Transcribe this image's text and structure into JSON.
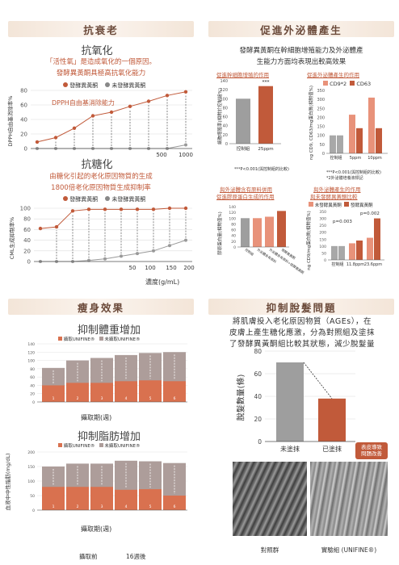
{
  "sections": {
    "antiaging": "抗衰老",
    "secretion": "促進外泌體產生",
    "slimming": "瘦身效果",
    "hairloss": "抑制脫髮問題"
  },
  "antiox": {
    "title": "抗氧化",
    "line1": "「活性氧」是造成氧化的一個原因。",
    "line2": "發酵異黃酮具極高抗氧化能力",
    "legend_a": "發酵異黃酮",
    "legend_b": "未發酵異黃酮",
    "inner_label": "DPPH自由基消除能力",
    "ylabel": "DPPH自由基消除率%"
  },
  "antigly": {
    "title": "抗糖化",
    "line1": "由糖化引起的老化原因物質的生成",
    "line2": "1800倍老化原因物質生成抑制率",
    "legend_a": "發酵異黃酮",
    "legend_b": "未發酵異黃酮",
    "ylabel": "CML生成抑制率%",
    "xlabel": "濃度(g/mL)"
  },
  "secretion": {
    "line1": "發酵異黃酮在幹細胞增殖能力及外泌體產",
    "line2": "生能力方面均表現出較高效果",
    "sub1": "促進幹細胞增殖的作用",
    "sub2": "促進外泌體產生的作用",
    "sub3": "與外泌體含有原料併用 促進膠原蛋白生成的作用",
    "sub3a": "與外泌體含有原料併用",
    "sub3b": "促進膠原蛋白生成的作用",
    "sub4a": "與外泌體產生的作用",
    "sub4b": "與未發酵異黃酮比較",
    "note1": "***P<0.001(與控制組的比較)",
    "note2": "***P<0.001(與控制組的比較)",
    "note2b": "*2外泌體培養液標記",
    "p_value": "p=0.003",
    "p_value2": "p=0.002",
    "legend_cd9": "CD9*2",
    "legend_cd63": "CD63",
    "legend_a": "未發酵異黃酮",
    "legend_b": "發酵異黃酮"
  },
  "chart_cells": {
    "type": "bar",
    "ylabel": "細胞增殖率(相對於控制組%)",
    "categories": [
      "控制組",
      "25ppm"
    ],
    "values": [
      100,
      128
    ],
    "ylim": [
      0,
      140
    ],
    "sig": "***"
  },
  "chart_exo": {
    "type": "bar",
    "ylabel": "ng CD9, CD63/mg蛋白質(相對值%)",
    "categories": [
      "控制組",
      "5ppm",
      "10ppm"
    ],
    "series": [
      {
        "name": "CD9*2",
        "values": [
          100,
          215,
          310
        ]
      },
      {
        "name": "CD63",
        "values": [
          100,
          140,
          140
        ]
      }
    ],
    "ylim": [
      0,
      350
    ]
  },
  "chart_col": {
    "type": "bar",
    "ylabel": "膠原蛋白量(相對值%)",
    "categories": [
      "控制組",
      "外泌體含有原料",
      "外泌體含有原料+發酵異黃酮",
      "發酵異黃酮"
    ],
    "values": [
      100,
      100,
      105,
      125
    ],
    "ylim": [
      0,
      140
    ]
  },
  "chart_exo2": {
    "type": "bar",
    "ylabel": "ng CD9/mg蛋白質(相對值%)",
    "categories": [
      "控制組",
      "11.8ppm",
      "23.6ppm"
    ],
    "series": [
      {
        "name": "未發酵異黃酮",
        "values": [
          100,
          120,
          160
        ]
      },
      {
        "name": "發酵異黃酮",
        "values": [
          100,
          140,
          300
        ]
      }
    ],
    "ylim": [
      0,
      350
    ]
  },
  "chart_dpph": {
    "type": "line",
    "x": [
      100,
      200,
      300,
      400,
      500,
      600,
      700,
      800,
      1000
    ],
    "series": [
      {
        "name": "發酵異黃酮",
        "values": [
          9,
          15,
          28,
          45,
          50,
          58,
          65,
          73,
          78
        ]
      },
      {
        "name": "未發酵異黃酮",
        "values": [
          0,
          0,
          0,
          0,
          0,
          0,
          0,
          0,
          5
        ]
      }
    ],
    "ylim": [
      0,
      80
    ],
    "yticks": [
      "0",
      "20",
      "40",
      "60",
      "80"
    ],
    "xticks": [
      "500",
      "1000"
    ]
  },
  "chart_cml": {
    "type": "line",
    "xticks": [
      "50",
      "100",
      "150",
      "200"
    ],
    "series": [
      {
        "name": "發酵異黃酮",
        "values": [
          62,
          65,
          95,
          98,
          98,
          98,
          98,
          98,
          100,
          100
        ]
      },
      {
        "name": "未發酵異黃酮",
        "values": [
          0,
          0,
          0,
          2,
          5,
          10,
          15,
          20,
          30,
          40
        ]
      }
    ],
    "ylim": [
      0,
      100
    ],
    "yticks": [
      "0",
      "20",
      "40",
      "60",
      "80",
      "100"
    ]
  },
  "weight": {
    "title": "抑制體重增加",
    "legend_a": "攝取UNIFINE®",
    "legend_b": "未攝取UNIFINE®",
    "xlabel": "攝取期(週)",
    "yticks": [
      "0",
      "20",
      "40",
      "60",
      "80",
      "100",
      "120",
      "140"
    ],
    "categories": [
      "1",
      "2",
      "3",
      "4",
      "5",
      "6"
    ],
    "series": [
      {
        "name": "攝取UNIFINE®",
        "values": [
          40,
          46,
          46,
          50,
          52,
          50
        ]
      },
      {
        "name": "未攝取UNIFINE®",
        "values": [
          82,
          100,
          106,
          113,
          118,
          120
        ]
      }
    ]
  },
  "fat": {
    "title": "抑制脂肪增加",
    "legend_a": "攝取UNIFINE®",
    "legend_b": "未攝取UNIFINE®",
    "xlabel": "攝取期(週)",
    "ylabel": "血液中中性脂肪(mg/dL)",
    "yticks": [
      "0",
      "50",
      "100",
      "150",
      "200"
    ],
    "categories": [
      "1",
      "2",
      "3",
      "4",
      "5",
      "6"
    ],
    "series": [
      {
        "name": "攝取UNIFINE®",
        "values": [
          80,
          80,
          80,
          70,
          72,
          50
        ]
      },
      {
        "name": "未攝取UNIFINE®",
        "values": [
          150,
          160,
          160,
          170,
          168,
          162
        ]
      }
    ]
  },
  "footer": {
    "before": "攝取前",
    "after": "16週後"
  },
  "hair": {
    "line1": "將肌膚投入老化原因物質（AGEs），在",
    "line2": "皮膚上產生糖化應激，分為對照組及塗抹",
    "line3": "了發酵異黃酮組比較其狀態，減少脫髮量",
    "ylabel": "脫髮數量(條)",
    "categories": [
      "未塗抹",
      "已塗抹"
    ],
    "values": [
      70,
      38
    ],
    "yticks": [
      "0",
      "20",
      "40",
      "60",
      "80"
    ],
    "badge1": "表皮導致",
    "badge2": "問題改善",
    "photo1": "對照群",
    "photo2": "實驗組 (UNIFINE®)"
  }
}
